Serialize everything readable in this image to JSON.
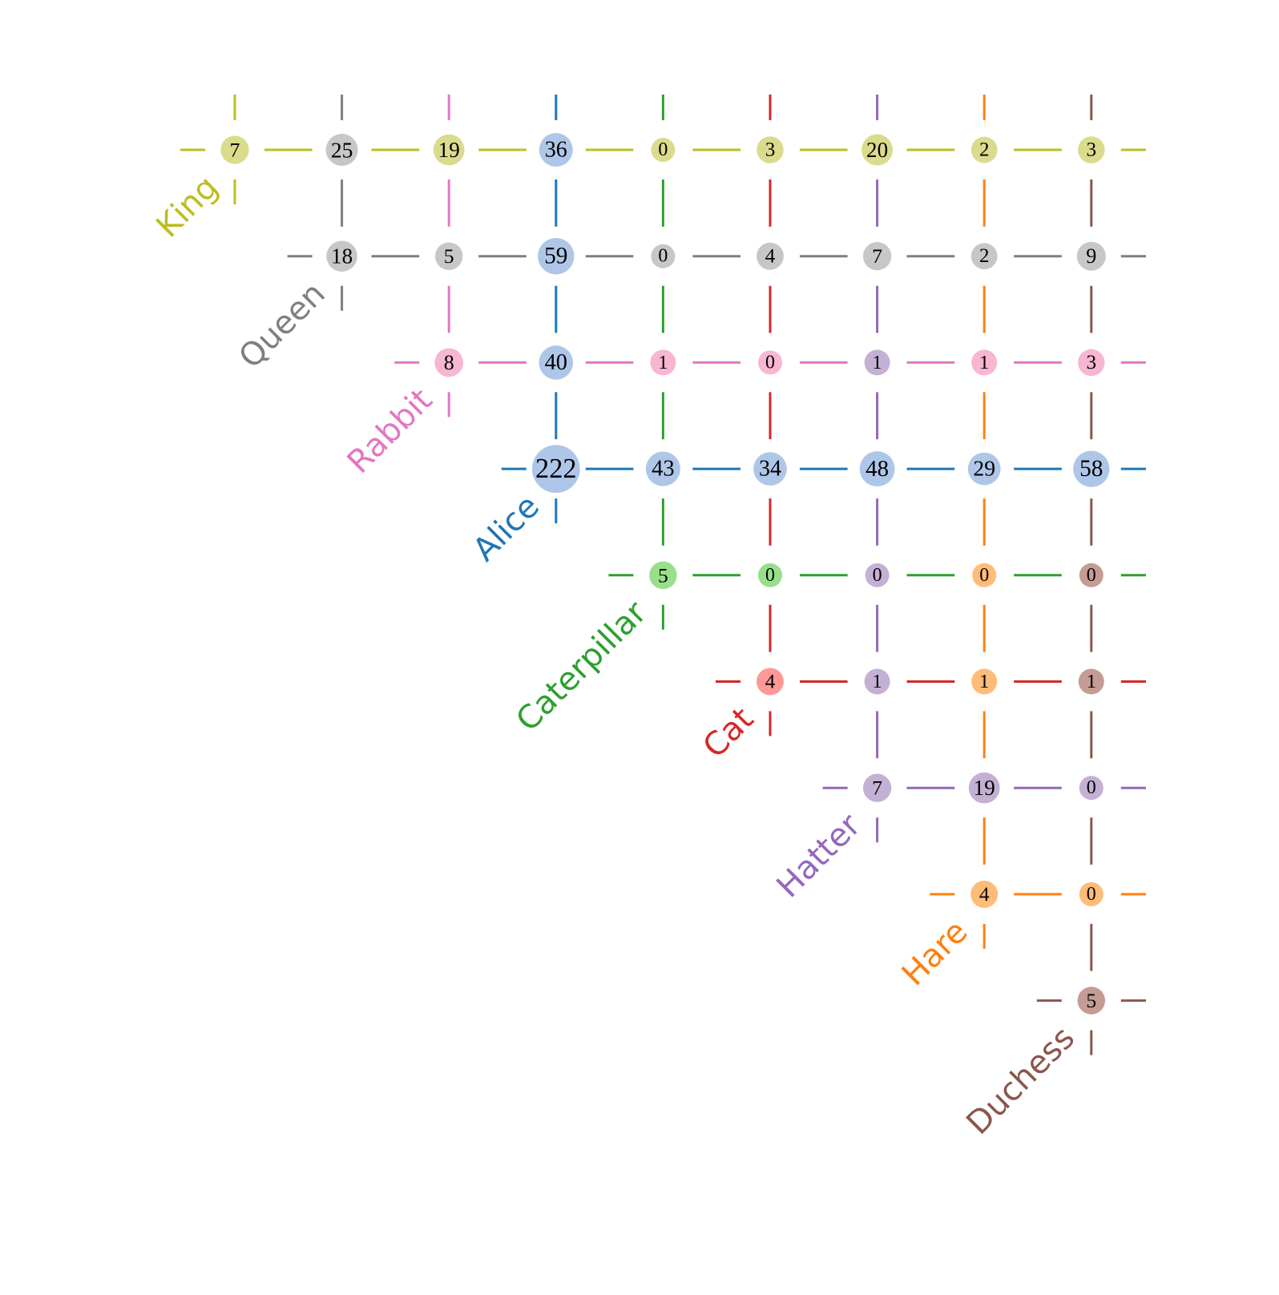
{
  "matrix": {
    "rows": [
      {
        "name": "King",
        "color": "#bcbd22",
        "values": [
          7,
          25,
          19,
          36,
          0,
          3,
          20,
          2,
          3
        ],
        "fills": [
          "#dbdb8d",
          "#c7c7c7",
          "#dbdb8d",
          "#aec7e8",
          "#dbdb8d",
          "#dbdb8d",
          "#dbdb8d",
          "#dbdb8d",
          "#dbdb8d"
        ]
      },
      {
        "name": "Queen",
        "color": "#7f7f7f",
        "values": [
          18,
          5,
          59,
          0,
          4,
          7,
          2,
          9
        ],
        "fills": [
          "#c7c7c7",
          "#c7c7c7",
          "#aec7e8",
          "#c7c7c7",
          "#c7c7c7",
          "#c7c7c7",
          "#c7c7c7",
          "#c7c7c7"
        ]
      },
      {
        "name": "Rabbit",
        "color": "#e377c2",
        "values": [
          8,
          40,
          1,
          0,
          1,
          1,
          3
        ],
        "fills": [
          "#f7b6d2",
          "#aec7e8",
          "#f7b6d2",
          "#f7b6d2",
          "#c5b0d5",
          "#f7b6d2",
          "#f7b6d2"
        ]
      },
      {
        "name": "Alice",
        "color": "#1f77b4",
        "values": [
          222,
          43,
          34,
          48,
          29,
          58
        ],
        "fills": [
          "#aec7e8",
          "#aec7e8",
          "#aec7e8",
          "#aec7e8",
          "#aec7e8",
          "#aec7e8"
        ]
      },
      {
        "name": "Caterpillar",
        "color": "#2ca02c",
        "values": [
          5,
          0,
          0,
          0,
          0
        ],
        "fills": [
          "#98df8a",
          "#98df8a",
          "#c5b0d5",
          "#ffbb78",
          "#c49c94"
        ]
      },
      {
        "name": "Cat",
        "color": "#d62728",
        "values": [
          4,
          1,
          1,
          1
        ],
        "fills": [
          "#ff9896",
          "#c5b0d5",
          "#ffbb78",
          "#c49c94"
        ]
      },
      {
        "name": "Hatter",
        "color": "#9467bd",
        "values": [
          7,
          19,
          0
        ],
        "fills": [
          "#c5b0d5",
          "#c5b0d5",
          "#c5b0d5"
        ]
      },
      {
        "name": "Hare",
        "color": "#ff7f0e",
        "values": [
          4,
          0
        ],
        "fills": [
          "#ffbb78",
          "#ffbb78"
        ]
      },
      {
        "name": "Duchess",
        "color": "#8c564b",
        "values": [
          5
        ],
        "fills": [
          "#c49c94"
        ]
      }
    ]
  }
}
